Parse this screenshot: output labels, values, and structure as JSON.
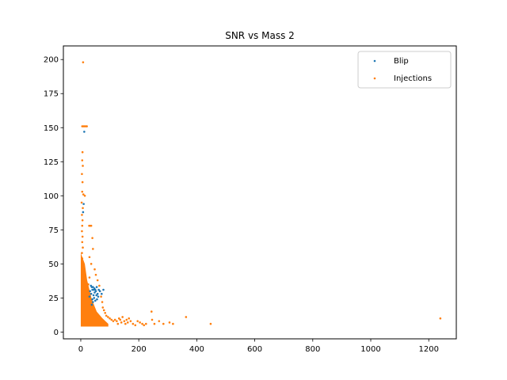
{
  "chart_data": {
    "type": "scatter",
    "title": "SNR vs Mass 2",
    "xlabel": "",
    "ylabel": "",
    "xlim": [
      -60,
      1295
    ],
    "ylim": [
      -5,
      210
    ],
    "xticks": [
      0,
      200,
      400,
      600,
      800,
      1000,
      1200
    ],
    "yticks": [
      0,
      25,
      50,
      75,
      100,
      125,
      150,
      175,
      200
    ],
    "grid": false,
    "legend_position": "top-right",
    "series": [
      {
        "name": "Blip",
        "color": "#1f77b4",
        "points": [
          [
            12,
            147
          ],
          [
            8,
            88
          ],
          [
            10,
            94
          ],
          [
            32,
            30
          ],
          [
            35,
            34
          ],
          [
            38,
            33
          ],
          [
            40,
            31
          ],
          [
            42,
            33
          ],
          [
            45,
            31
          ],
          [
            47,
            32
          ],
          [
            48,
            29
          ],
          [
            50,
            31
          ],
          [
            52,
            30
          ],
          [
            55,
            33
          ],
          [
            58,
            28
          ],
          [
            62,
            31
          ],
          [
            66,
            30
          ],
          [
            72,
            28
          ],
          [
            78,
            31
          ],
          [
            44,
            27
          ],
          [
            36,
            28
          ],
          [
            30,
            26
          ],
          [
            60,
            26
          ],
          [
            54,
            27
          ],
          [
            46,
            25
          ],
          [
            40,
            24
          ],
          [
            50,
            23
          ],
          [
            38,
            20
          ],
          [
            42,
            22
          ],
          [
            56,
            24
          ]
        ]
      },
      {
        "name": "Injections",
        "color": "#ff7f0e",
        "points": [
          [
            8,
            198
          ],
          [
            5,
            151
          ],
          [
            9,
            151
          ],
          [
            13,
            151
          ],
          [
            17,
            151
          ],
          [
            21,
            151
          ],
          [
            6,
            132
          ],
          [
            5,
            126
          ],
          [
            7,
            122
          ],
          [
            4,
            116
          ],
          [
            6,
            110
          ],
          [
            5,
            103
          ],
          [
            9,
            101
          ],
          [
            14,
            100
          ],
          [
            3,
            95
          ],
          [
            7,
            91
          ],
          [
            4,
            86
          ],
          [
            6,
            82
          ],
          [
            5,
            78
          ],
          [
            29,
            78
          ],
          [
            33,
            78
          ],
          [
            36,
            78
          ],
          [
            4,
            74
          ],
          [
            6,
            70
          ],
          [
            40,
            69
          ],
          [
            5,
            66
          ],
          [
            7,
            62
          ],
          [
            42,
            61
          ],
          [
            4,
            58
          ],
          [
            30,
            55
          ],
          [
            5,
            54
          ],
          [
            6,
            50
          ],
          [
            36,
            50
          ],
          [
            5,
            46
          ],
          [
            48,
            46
          ],
          [
            4,
            42
          ],
          [
            52,
            42
          ],
          [
            30,
            40
          ],
          [
            58,
            38
          ],
          [
            20,
            36
          ],
          [
            26,
            35
          ],
          [
            64,
            34
          ],
          [
            66,
            30
          ],
          [
            70,
            26
          ],
          [
            74,
            22
          ],
          [
            76,
            18
          ],
          [
            80,
            16
          ],
          [
            84,
            14
          ],
          [
            88,
            12
          ],
          [
            94,
            11
          ],
          [
            100,
            10
          ],
          [
            106,
            9
          ],
          [
            112,
            8
          ],
          [
            118,
            9
          ],
          [
            124,
            8
          ],
          [
            128,
            6
          ],
          [
            132,
            10
          ],
          [
            136,
            9
          ],
          [
            140,
            7
          ],
          [
            144,
            11
          ],
          [
            150,
            8
          ],
          [
            154,
            6
          ],
          [
            158,
            9
          ],
          [
            162,
            7
          ],
          [
            166,
            10
          ],
          [
            172,
            8
          ],
          [
            180,
            6
          ],
          [
            188,
            5
          ],
          [
            196,
            8
          ],
          [
            204,
            7
          ],
          [
            212,
            6
          ],
          [
            218,
            5
          ],
          [
            225,
            6
          ],
          [
            244,
            15
          ],
          [
            246,
            9
          ],
          [
            254,
            6
          ],
          [
            270,
            8
          ],
          [
            285,
            6
          ],
          [
            306,
            7
          ],
          [
            318,
            6
          ],
          [
            363,
            11
          ],
          [
            448,
            6
          ],
          [
            1240,
            10
          ]
        ]
      }
    ]
  }
}
